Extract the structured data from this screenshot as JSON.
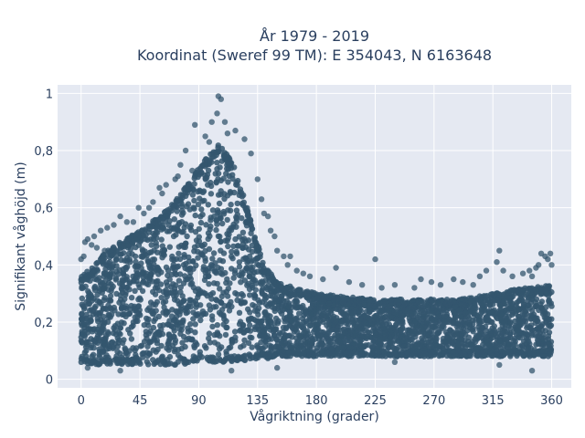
{
  "chart_data": {
    "type": "scatter",
    "title_line1": "År 1979 - 2019",
    "title_line2": "Koordinat (Sweref 99 TM): E 354043, N 6163648",
    "xlabel": "Vågriktning (grader)",
    "ylabel": "Signifikant våghöjd (m)",
    "xlim": [
      -18,
      375
    ],
    "ylim": [
      -0.03,
      1.03
    ],
    "x_ticks": [
      0,
      45,
      90,
      135,
      180,
      225,
      270,
      315,
      360
    ],
    "x_tick_labels": [
      "0",
      "45",
      "90",
      "135",
      "180",
      "225",
      "270",
      "315",
      "360"
    ],
    "y_ticks": [
      0,
      0.2,
      0.4,
      0.6,
      0.8,
      1
    ],
    "y_tick_labels": [
      "0",
      "0,2",
      "0,4",
      "0,6",
      "0,8",
      "1"
    ],
    "grid": true,
    "marker_color": "#34566e",
    "background_color": "#e5e9f2",
    "envelope": {
      "x": [
        0,
        10,
        20,
        30,
        45,
        60,
        75,
        90,
        100,
        105,
        110,
        120,
        130,
        140,
        150,
        165,
        180,
        200,
        225,
        250,
        270,
        290,
        315,
        340,
        360
      ],
      "y_max": [
        0.36,
        0.4,
        0.45,
        0.48,
        0.52,
        0.57,
        0.64,
        0.74,
        0.8,
        0.82,
        0.8,
        0.72,
        0.55,
        0.4,
        0.34,
        0.32,
        0.3,
        0.29,
        0.28,
        0.28,
        0.28,
        0.28,
        0.3,
        0.32,
        0.33
      ],
      "y_min": [
        0.06,
        0.05,
        0.05,
        0.05,
        0.05,
        0.05,
        0.05,
        0.06,
        0.06,
        0.06,
        0.06,
        0.06,
        0.07,
        0.07,
        0.08,
        0.08,
        0.08,
        0.08,
        0.08,
        0.08,
        0.08,
        0.08,
        0.08,
        0.08,
        0.08
      ]
    },
    "outliers": [
      [
        105,
        0.99
      ],
      [
        107,
        0.98
      ],
      [
        104,
        0.93
      ],
      [
        100,
        0.9
      ],
      [
        110,
        0.9
      ],
      [
        87,
        0.89
      ],
      [
        118,
        0.87
      ],
      [
        112,
        0.86
      ],
      [
        95,
        0.85
      ],
      [
        125,
        0.84
      ],
      [
        98,
        0.83
      ],
      [
        80,
        0.8
      ],
      [
        130,
        0.79
      ],
      [
        76,
        0.75
      ],
      [
        85,
        0.73
      ],
      [
        74,
        0.71
      ],
      [
        72,
        0.7
      ],
      [
        135,
        0.7
      ],
      [
        65,
        0.68
      ],
      [
        60,
        0.67
      ],
      [
        62,
        0.65
      ],
      [
        138,
        0.63
      ],
      [
        55,
        0.62
      ],
      [
        52,
        0.6
      ],
      [
        44,
        0.6
      ],
      [
        140,
        0.58
      ],
      [
        48,
        0.58
      ],
      [
        30,
        0.57
      ],
      [
        143,
        0.57
      ],
      [
        35,
        0.55
      ],
      [
        40,
        0.55
      ],
      [
        25,
        0.54
      ],
      [
        20,
        0.53
      ],
      [
        145,
        0.52
      ],
      [
        15,
        0.52
      ],
      [
        10,
        0.5
      ],
      [
        148,
        0.5
      ],
      [
        5,
        0.49
      ],
      [
        3,
        0.48
      ],
      [
        8,
        0.47
      ],
      [
        12,
        0.46
      ],
      [
        18,
        0.45
      ],
      [
        150,
        0.45
      ],
      [
        155,
        0.43
      ],
      [
        160,
        0.43
      ],
      [
        2,
        0.43
      ],
      [
        0,
        0.42
      ],
      [
        22,
        0.41
      ],
      [
        158,
        0.4
      ],
      [
        165,
        0.38
      ],
      [
        170,
        0.37
      ],
      [
        175,
        0.36
      ],
      [
        185,
        0.35
      ],
      [
        195,
        0.39
      ],
      [
        205,
        0.34
      ],
      [
        215,
        0.33
      ],
      [
        230,
        0.32
      ],
      [
        240,
        0.33
      ],
      [
        255,
        0.32
      ],
      [
        268,
        0.34
      ],
      [
        275,
        0.33
      ],
      [
        285,
        0.35
      ],
      [
        292,
        0.34
      ],
      [
        300,
        0.33
      ],
      [
        305,
        0.36
      ],
      [
        310,
        0.38
      ],
      [
        318,
        0.41
      ],
      [
        320,
        0.45
      ],
      [
        323,
        0.38
      ],
      [
        330,
        0.36
      ],
      [
        338,
        0.37
      ],
      [
        343,
        0.38
      ],
      [
        348,
        0.39
      ],
      [
        352,
        0.44
      ],
      [
        355,
        0.43
      ],
      [
        357,
        0.42
      ],
      [
        359,
        0.44
      ],
      [
        360,
        0.4
      ],
      [
        350,
        0.4
      ],
      [
        345,
        0.36
      ],
      [
        225,
        0.42
      ],
      [
        260,
        0.35
      ],
      [
        345,
        0.03
      ],
      [
        5,
        0.04
      ],
      [
        30,
        0.03
      ],
      [
        115,
        0.03
      ],
      [
        150,
        0.04
      ],
      [
        240,
        0.06
      ],
      [
        320,
        0.05
      ]
    ]
  }
}
